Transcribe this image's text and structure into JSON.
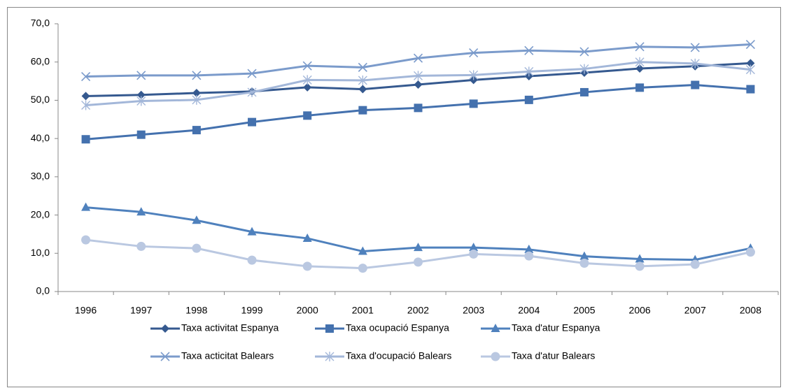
{
  "chart_data": {
    "type": "line",
    "categories": [
      "1996",
      "1997",
      "1998",
      "1999",
      "2000",
      "2001",
      "2002",
      "2003",
      "2004",
      "2005",
      "2006",
      "2007",
      "2008"
    ],
    "ylim": [
      0,
      70
    ],
    "yticks": [
      {
        "value": 0,
        "label": "0,0"
      },
      {
        "value": 10,
        "label": "10,0"
      },
      {
        "value": 20,
        "label": "20,0"
      },
      {
        "value": 30,
        "label": "30,0"
      },
      {
        "value": 40,
        "label": "40,0"
      },
      {
        "value": 50,
        "label": "50,0"
      },
      {
        "value": 60,
        "label": "60,0"
      },
      {
        "value": 70,
        "label": "70,0"
      }
    ],
    "grid": false,
    "legend": "bottom",
    "series": [
      {
        "name": "Taxa activitat  Espanya",
        "color": "#35598f",
        "marker": "diamond",
        "values": [
          51.1,
          51.4,
          51.9,
          52.3,
          53.4,
          52.9,
          54.1,
          55.3,
          56.3,
          57.2,
          58.3,
          58.9,
          59.7
        ]
      },
      {
        "name": "Taxa ocupació Espanya",
        "color": "#4471ae",
        "marker": "square",
        "values": [
          39.8,
          41.0,
          42.2,
          44.3,
          46.0,
          47.4,
          48.0,
          49.1,
          50.1,
          52.1,
          53.3,
          54.0,
          52.9
        ]
      },
      {
        "name": "Taxa d'atur  Espanya",
        "color": "#4f81bd",
        "marker": "triangle",
        "values": [
          22.0,
          20.8,
          18.6,
          15.6,
          13.9,
          10.5,
          11.5,
          11.5,
          11.0,
          9.2,
          8.5,
          8.3,
          11.3
        ]
      },
      {
        "name": "Taxa acticitat  Balears",
        "color": "#7b9bcb",
        "marker": "x",
        "values": [
          56.2,
          56.5,
          56.5,
          57.0,
          59.0,
          58.6,
          61.0,
          62.4,
          63.0,
          62.7,
          64.0,
          63.8,
          64.6
        ]
      },
      {
        "name": "Taxa d'ocupació Balears",
        "color": "#a3b7d9",
        "marker": "star",
        "values": [
          48.7,
          49.8,
          50.1,
          52.1,
          55.3,
          55.2,
          56.4,
          56.6,
          57.5,
          58.2,
          60.0,
          59.6,
          58.0
        ]
      },
      {
        "name": "Taxa d'atur  Balears",
        "color": "#bac8e1",
        "marker": "circle",
        "values": [
          13.5,
          11.8,
          11.3,
          8.2,
          6.6,
          6.1,
          7.7,
          9.8,
          9.3,
          7.4,
          6.6,
          7.1,
          10.3
        ]
      }
    ]
  }
}
